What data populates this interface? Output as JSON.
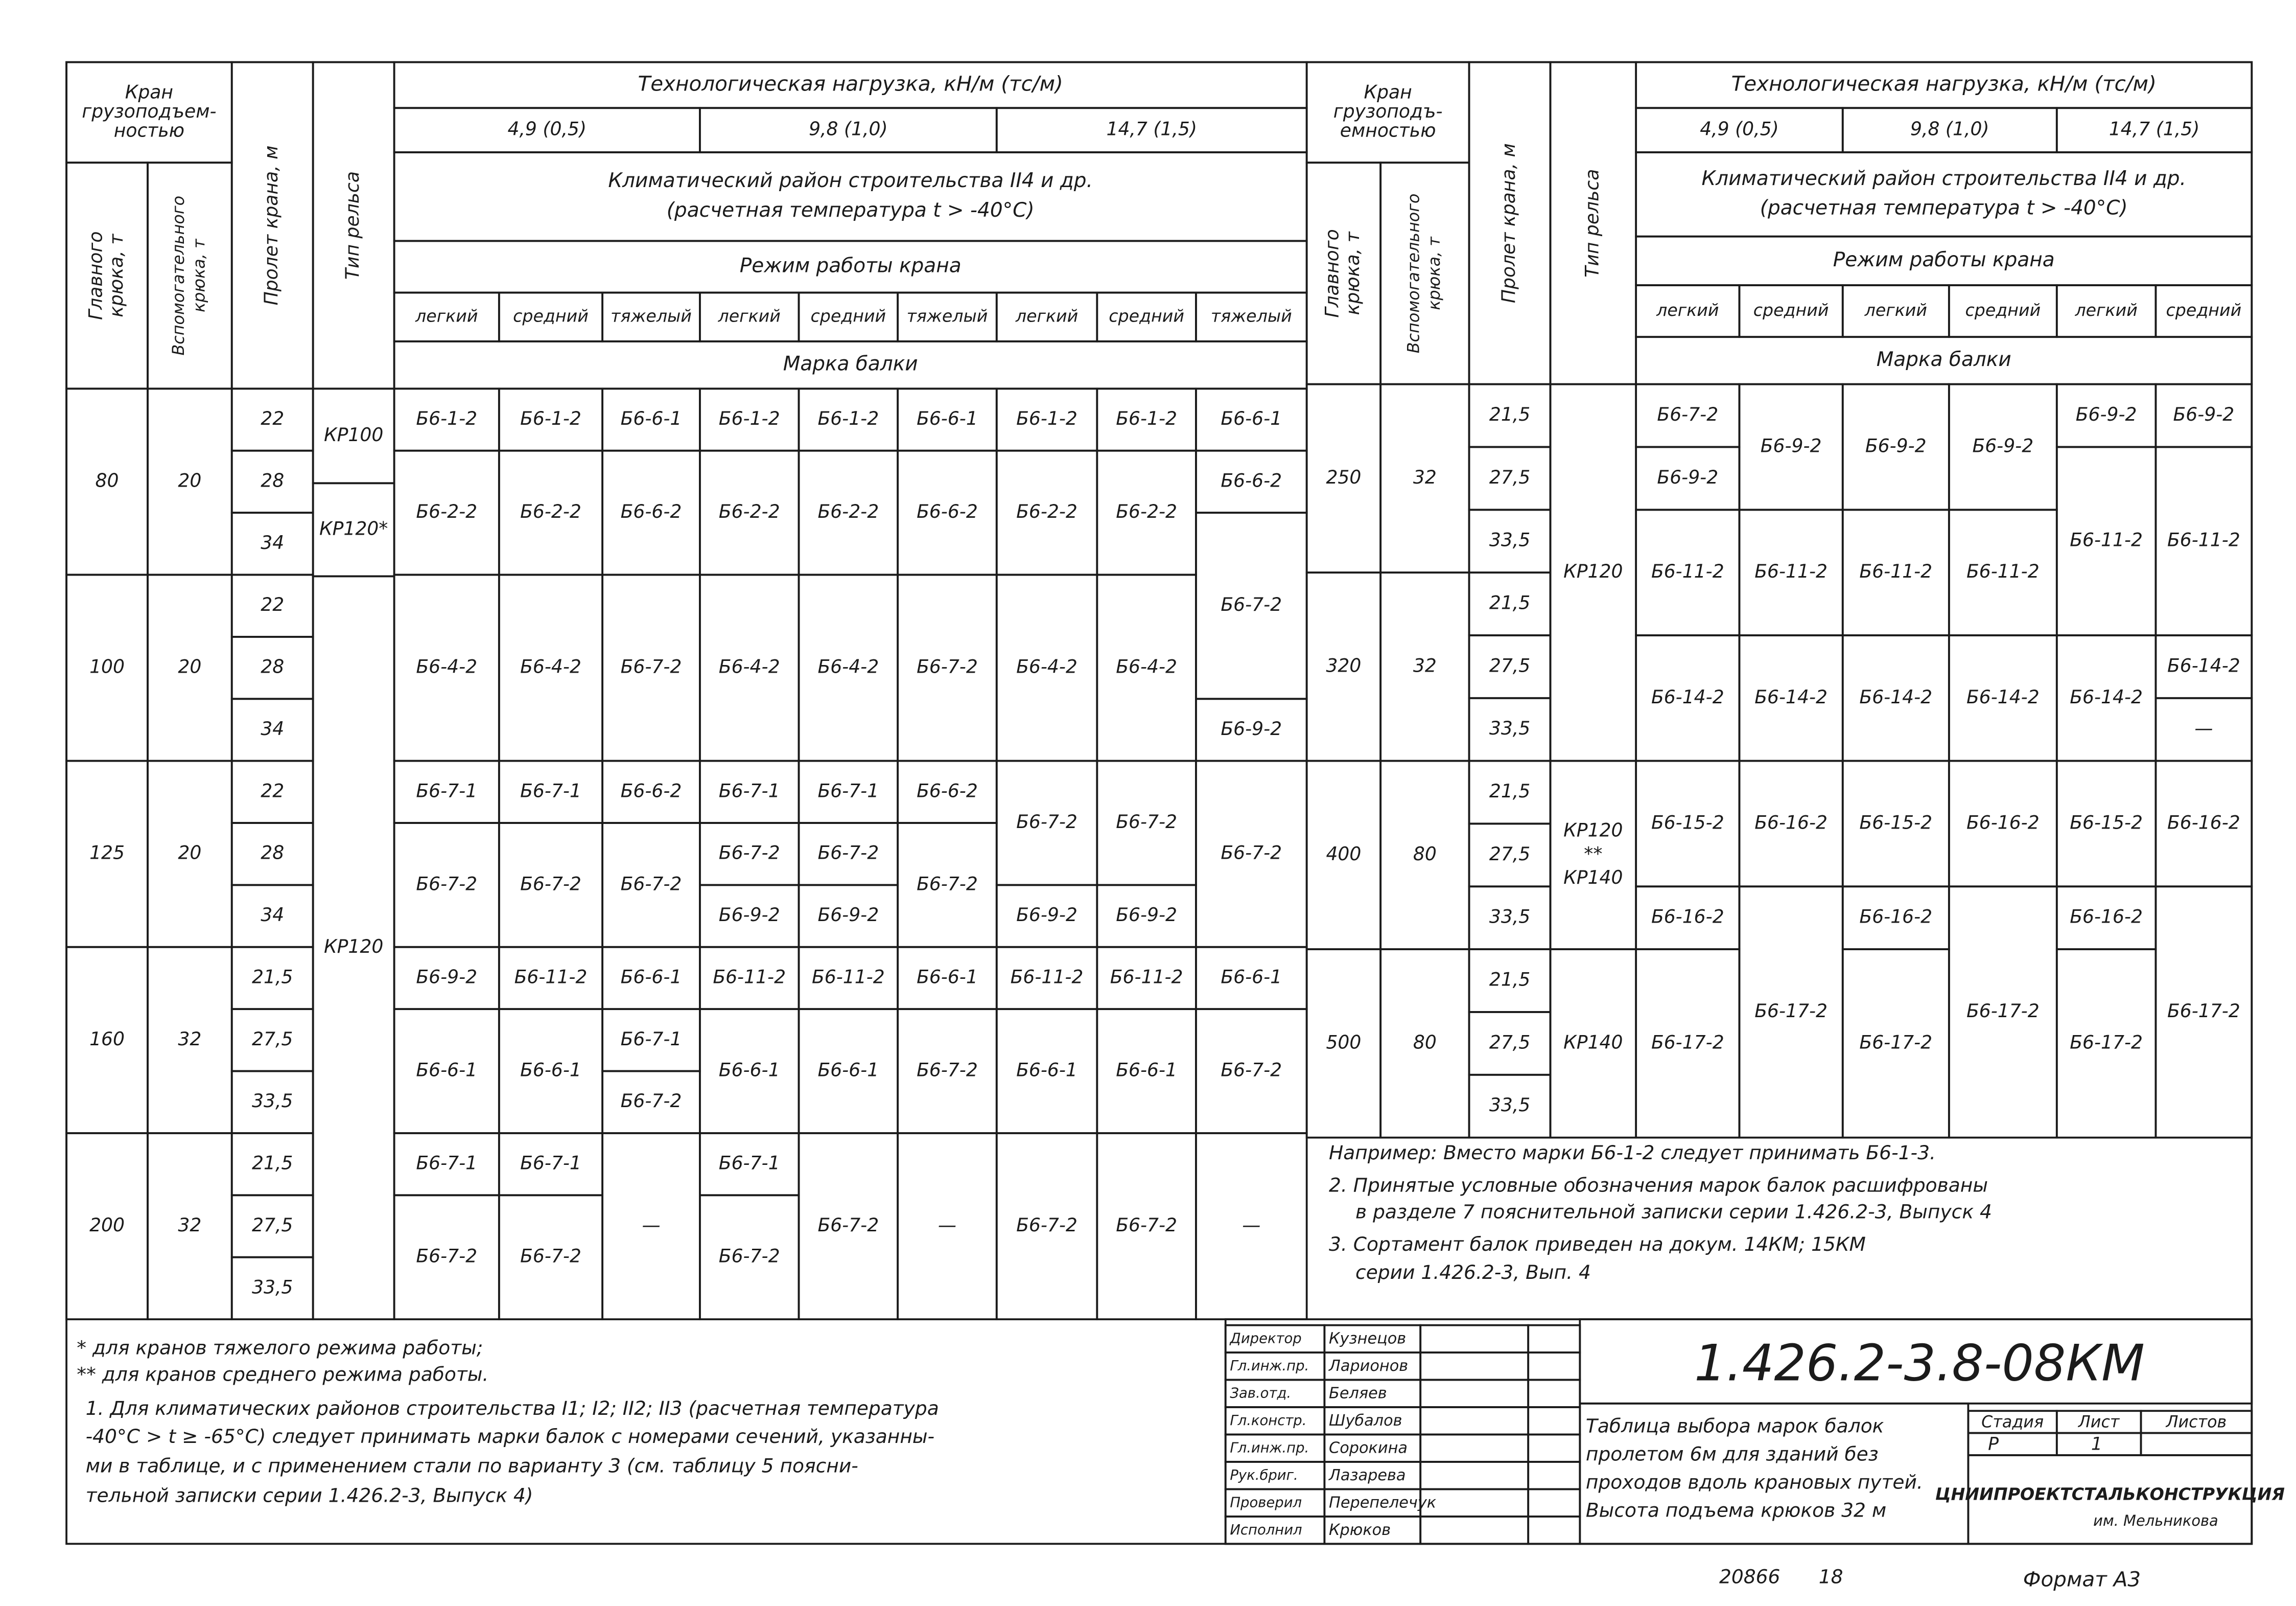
{
  "left_table": {
    "crane_capacity": [
      "Кран",
      "грузоподъем-",
      "ностью"
    ],
    "main_hook": [
      "Главного",
      "крюка, т"
    ],
    "aux_hook": [
      "Вспомогательного",
      "крюка, т"
    ],
    "span": "Пролет крана, м",
    "rail_type": "Тип рельса",
    "load_title": "Технологическая нагрузка, кН/м (тс/м)",
    "loads": [
      "4,9 (0,5)",
      "9,8 (1,0)",
      "14,7 (1,5)"
    ],
    "climate": [
      "Климатический район строительства II4 и др.",
      "(расчетная температура t > -40°С)"
    ],
    "regime_title": "Режим работы крана",
    "regimes": [
      "легкий",
      "средний",
      "тяжелый",
      "легкий",
      "средний",
      "тяжелый",
      "легкий",
      "средний",
      "тяжелый"
    ],
    "beam_title": "Марка балки",
    "groups": [
      {
        "main": "80",
        "aux": "20",
        "spans": [
          "22",
          "28",
          "34"
        ]
      },
      {
        "main": "100",
        "aux": "20",
        "spans": [
          "22",
          "28",
          "34"
        ]
      },
      {
        "main": "125",
        "aux": "20",
        "spans": [
          "22",
          "28",
          "34"
        ]
      },
      {
        "main": "160",
        "aux": "32",
        "spans": [
          "21,5",
          "27,5",
          "33,5"
        ]
      },
      {
        "main": "200",
        "aux": "32",
        "spans": [
          "21,5",
          "27,5",
          "33,5"
        ]
      }
    ],
    "rails": [
      "КР100",
      "КР120*",
      "КР120"
    ],
    "beams": [
      [
        "Б6-1-2",
        "Б6-2-2",
        "Б6-4-2",
        "Б6-7-1",
        "Б6-7-2",
        "Б6-9-2",
        "Б6-6-1",
        "Б6-7-1",
        "Б6-7-2"
      ],
      [
        "Б6-1-2",
        "Б6-2-2",
        "Б6-4-2",
        "Б6-7-1",
        "Б6-7-2",
        "Б6-11-2",
        "Б6-6-1",
        "Б6-7-1",
        "Б6-7-2"
      ],
      [
        "Б6-6-1",
        "Б6-6-2",
        "Б6-7-2",
        "Б6-6-2",
        "Б6-7-2",
        "Б6-6-1",
        "Б6-7-1",
        "Б6-7-2",
        "—"
      ],
      [
        "Б6-1-2",
        "Б6-2-2",
        "Б6-4-2",
        "Б6-7-1",
        "Б6-7-2",
        "Б6-9-2",
        "Б6-11-2",
        "Б6-6-1",
        "Б6-7-1",
        "Б6-7-2"
      ],
      [
        "Б6-1-2",
        "Б6-2-2",
        "Б6-4-2",
        "Б6-7-1",
        "Б6-7-2",
        "Б6-9-2",
        "Б6-11-2",
        "Б6-6-1",
        "Б6-7-2"
      ],
      [
        "Б6-6-1",
        "Б6-6-2",
        "Б6-7-2",
        "Б6-6-2",
        "Б6-7-2",
        "Б6-6-1",
        "Б6-7-2",
        "—"
      ],
      [
        "Б6-1-2",
        "Б6-2-2",
        "Б6-4-2",
        "Б6-7-2",
        "Б6-9-2",
        "Б6-11-2",
        "Б6-6-1",
        "Б6-7-2"
      ],
      [
        "Б6-1-2",
        "Б6-2-2",
        "Б6-4-2",
        "Б6-7-2",
        "Б6-9-2",
        "Б6-11-2",
        "Б6-6-1",
        "Б6-7-2"
      ],
      [
        "Б6-6-1",
        "Б6-6-2",
        "Б6-7-2",
        "Б6-9-2",
        "Б6-7-2",
        "Б6-6-1",
        "Б6-7-2",
        "—"
      ]
    ]
  },
  "right_table": {
    "crane_capacity": [
      "Кран",
      "грузоподъ-",
      "емностью"
    ],
    "main_hook": [
      "Главного",
      "крюка, т"
    ],
    "aux_hook": [
      "Вспомогательного",
      "крюка, т"
    ],
    "span": "Пролет крана, м",
    "rail_type": "Тип рельса",
    "load_title": "Технологическая нагрузка, кН/м (тс/м)",
    "loads": [
      "4,9 (0,5)",
      "9,8 (1,0)",
      "14,7 (1,5)"
    ],
    "climate": [
      "Климатический район строительства II4 и др.",
      "(расчетная температура t > -40°С)"
    ],
    "regime_title": "Режим работы крана",
    "regimes": [
      "легкий",
      "средний",
      "легкий",
      "средний",
      "легкий",
      "средний"
    ],
    "beam_title": "Марка балки",
    "groups": [
      {
        "main": "250",
        "aux": "32",
        "spans": [
          "21,5",
          "27,5",
          "33,5"
        ]
      },
      {
        "main": "320",
        "aux": "32",
        "spans": [
          "21,5",
          "27,5",
          "33,5"
        ]
      },
      {
        "main": "400",
        "aux": "80",
        "spans": [
          "21,5",
          "27,5",
          "33,5"
        ]
      },
      {
        "main": "500",
        "aux": "80",
        "spans": [
          "21,5",
          "27,5",
          "33,5"
        ]
      }
    ],
    "rails": [
      "КР120",
      [
        "КР120",
        "**",
        "КР140"
      ],
      "КР140"
    ],
    "beams": [
      [
        "Б6-7-2",
        "Б6-9-2",
        "Б6-11-2",
        "Б6-14-2",
        "Б6-15-2",
        "Б6-16-2",
        "Б6-17-2"
      ],
      [
        "Б6-9-2",
        "Б6-11-2",
        "Б6-14-2",
        "Б6-16-2",
        "Б6-17-2"
      ],
      [
        "Б6-9-2",
        "Б6-11-2",
        "Б6-14-2",
        "Б6-15-2",
        "Б6-16-2",
        "Б6-17-2"
      ],
      [
        "Б6-9-2",
        "Б6-11-2",
        "Б6-14-2",
        "Б6-16-2",
        "Б6-17-2"
      ],
      [
        "Б6-9-2",
        "Б6-11-2",
        "Б6-14-2",
        "Б6-15-2",
        "Б6-16-2",
        "Б6-17-2"
      ],
      [
        "Б6-9-2",
        "Б6-11-2",
        "Б6-14-2",
        "—",
        "Б6-16-2",
        "Б6-17-2"
      ]
    ]
  },
  "table_notes": [
    "Например: Вместо марки Б6-1-2 следует принимать Б6-1-3.",
    "2. Принятые условные обозначения марок балок расшифрованы",
    "в разделе 7 пояснительной записки серии 1.426.2-3, Выпуск 4",
    "3. Сортамент балок приведен на докум. 14КМ; 15КМ",
    "серии 1.426.2-3, Вып. 4"
  ],
  "footnotes": [
    "* для кранов тяжелого режима работы;",
    "** для кранов среднего режима работы.",
    "1. Для климатических районов строительства I1; I2; II2; II3 (расчетная температура",
    "-40°С > t ≥ -65°С) следует принимать марки балок с номерами сечений, указанны-",
    "ми в таблице, и с применением стали по варианту 3 (см. таблицу 5 поясни-",
    "тельной записки серии 1.426.2-3, Выпуск 4)"
  ],
  "title_block": {
    "signatures": [
      [
        "Директор",
        "Кузнецов"
      ],
      [
        "Гл.инж.пр.",
        "Ларионов"
      ],
      [
        "Зав.отд.",
        "Беляев"
      ],
      [
        "Гл.констр.",
        "Шубалов"
      ],
      [
        "Гл.инж.пр.",
        "Сорокина"
      ],
      [
        "Рук.бриг.",
        "Лазарева"
      ],
      [
        "Проверил",
        "Перепелечук"
      ],
      [
        "Исполнил",
        "Крюков"
      ]
    ],
    "code": "1.426.2-3.8-08КМ",
    "description": [
      "Таблица выбора марок балок",
      "пролетом 6м для зданий без",
      "проходов вдоль крановых путей.",
      "Высота подъема крюков 32 м"
    ],
    "stage_labels": [
      "Стадия",
      "Лист",
      "Листов"
    ],
    "stage": "Р",
    "sheet": "1",
    "organization": "ЦНИИПРОЕКТСТАЛЬКОНСТРУКЦИЯ",
    "organization_sub": "им. Мельникова"
  },
  "footer": {
    "number": "20866",
    "page": "18",
    "format": "Формат А3"
  }
}
